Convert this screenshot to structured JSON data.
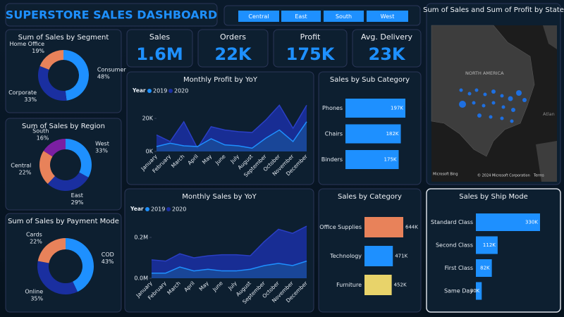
{
  "header": {
    "title": "SUPERSTORE SALES DASHBOARD"
  },
  "slicer": [
    "Central",
    "East",
    "South",
    "West"
  ],
  "kpis": [
    {
      "label": "Sales",
      "value": "1.6M"
    },
    {
      "label": "Orders",
      "value": "22K"
    },
    {
      "label": "Profit",
      "value": "175K"
    },
    {
      "label": "Avg. Delivery",
      "value": "23K"
    }
  ],
  "map": {
    "title": "Sum of Sales and Sum of Profit by State",
    "region_label": "NORTH AMERICA",
    "ocean_label": "Atlan",
    "provider": "Microsoft Bing",
    "copyright": "© 2024 Microsoft Corporation",
    "terms": "Terms"
  },
  "chart_data": [
    {
      "type": "donut",
      "title": "Sum of Sales by Segment",
      "categories": [
        "Consumer",
        "Corporate",
        "Home Office"
      ],
      "values": [
        48,
        33,
        19
      ],
      "value_labels": [
        "48%",
        "33%",
        "19%"
      ],
      "colors": [
        "#1e90ff",
        "#1a2fa0",
        "#e8825a"
      ]
    },
    {
      "type": "donut",
      "title": "Sum of Sales by Region",
      "categories": [
        "West",
        "East",
        "Central",
        "South"
      ],
      "values": [
        33,
        29,
        22,
        16
      ],
      "value_labels": [
        "33%",
        "29%",
        "22%",
        "16%"
      ],
      "colors": [
        "#1e90ff",
        "#1a2fa0",
        "#e8825a",
        "#7b1fa2"
      ]
    },
    {
      "type": "donut",
      "title": "Sum of Sales by Payment Mode",
      "categories": [
        "COD",
        "Online",
        "Cards"
      ],
      "values": [
        43,
        35,
        22
      ],
      "value_labels": [
        "43%",
        "35%",
        "22%"
      ],
      "colors": [
        "#1e90ff",
        "#1a2fa0",
        "#e8825a"
      ]
    },
    {
      "type": "area",
      "title": "Monthly Profit by YoY",
      "legend_title": "Year",
      "categories": [
        "January",
        "February",
        "March",
        "April",
        "May",
        "June",
        "July",
        "August",
        "September",
        "October",
        "November",
        "December"
      ],
      "series": [
        {
          "name": "2019",
          "color": "#1e90ff",
          "values": [
            3000,
            5000,
            3400,
            3000,
            7700,
            4000,
            3400,
            2000,
            8000,
            13000,
            6000,
            18000
          ]
        },
        {
          "name": "2020",
          "color": "#1a2fa0",
          "values": [
            10000,
            6000,
            18000,
            2000,
            15000,
            13000,
            12000,
            11500,
            19000,
            28000,
            14000,
            28000
          ]
        }
      ],
      "ylim": [
        0,
        32000
      ],
      "yticks": [
        {
          "value": 0,
          "label": "0K"
        },
        {
          "value": 20000,
          "label": "20K"
        }
      ]
    },
    {
      "type": "area",
      "title": "Monthly Sales by YoY",
      "legend_title": "Year",
      "categories": [
        "January",
        "February",
        "March",
        "April",
        "May",
        "June",
        "July",
        "August",
        "September",
        "October",
        "November",
        "December"
      ],
      "series": [
        {
          "name": "2019",
          "color": "#1e90ff",
          "values": [
            25000,
            25000,
            55000,
            36000,
            44000,
            36000,
            36000,
            44000,
            62000,
            73000,
            62000,
            84000
          ]
        },
        {
          "name": "2020",
          "color": "#1a2fa0",
          "values": [
            90000,
            84000,
            120000,
            100000,
            110000,
            115000,
            115000,
            110000,
            180000,
            240000,
            220000,
            255000
          ]
        }
      ],
      "ylim": [
        0,
        300000
      ],
      "yticks": [
        {
          "value": 0,
          "label": "0.0M"
        },
        {
          "value": 200000,
          "label": "0.2M"
        }
      ]
    },
    {
      "type": "barh",
      "title": "Sales by Sub Category",
      "categories": [
        "Phones",
        "Chairs",
        "Binders"
      ],
      "values": [
        197000,
        182000,
        175000
      ],
      "value_labels": [
        "197K",
        "182K",
        "175K"
      ],
      "colors": [
        "#1e90ff",
        "#1e90ff",
        "#1e90ff"
      ]
    },
    {
      "type": "barh",
      "title": "Sales by Category",
      "categories": [
        "Office Supplies",
        "Technology",
        "Furniture"
      ],
      "values": [
        644000,
        471000,
        452000
      ],
      "value_labels": [
        "644K",
        "471K",
        "452K"
      ],
      "colors": [
        "#e8825a",
        "#1e90ff",
        "#e8d36a"
      ]
    },
    {
      "type": "barh",
      "title": "Sales by Ship Mode",
      "categories": [
        "Standard Class",
        "Second Class",
        "First Class",
        "Same Day"
      ],
      "values": [
        330000,
        112000,
        82000,
        30000
      ],
      "value_labels": [
        "330K",
        "112K",
        "82K",
        "30K"
      ],
      "colors": [
        "#1e90ff",
        "#1e90ff",
        "#1e90ff",
        "#1e90ff"
      ]
    }
  ]
}
